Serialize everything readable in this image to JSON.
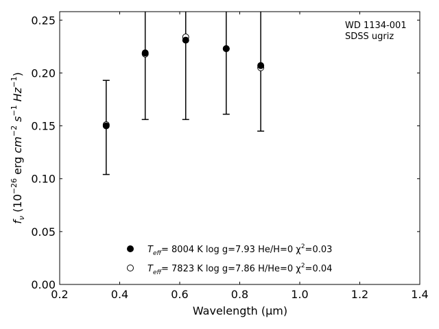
{
  "chart_data": {
    "type": "scatter",
    "title": "",
    "xlabel": "Wavelength (μm)",
    "ylabel_parts": {
      "f": "f",
      "nu": "ν",
      "open": " (10",
      "exp1": "−26",
      "mid": " erg ",
      "cm": "cm",
      "exp2": "−2",
      "s": " s",
      "exp3": "−1",
      "hz": " Hz",
      "exp4": "−1",
      "close": ")"
    },
    "xlim": [
      0.2,
      1.4
    ],
    "ylim": [
      0.0,
      0.258
    ],
    "xticks": [
      "0.2",
      "0.4",
      "0.6",
      "0.8",
      "1.0",
      "1.2",
      "1.4"
    ],
    "yticks": [
      "0.00",
      "0.05",
      "0.10",
      "0.15",
      "0.20",
      "0.25"
    ],
    "grid": false,
    "legend_location": "lower center",
    "annotation": [
      "WD 1134-001",
      "SDSS ugriz"
    ],
    "observed": {
      "x": [
        0.355,
        0.485,
        0.62,
        0.755,
        0.87
      ],
      "y": [
        0.151,
        0.218,
        0.234,
        0.223,
        0.205
      ],
      "err_low": [
        0.104,
        0.156,
        0.156,
        0.161,
        0.145
      ],
      "err_high": [
        0.193,
        0.258,
        0.258,
        0.258,
        0.258
      ]
    },
    "series": [
      {
        "marker": "filled",
        "legend": {
          "teff": "T",
          "teff_sub": "eff",
          "body": "=  8004 K  log g=7.93  He/H=0  χ",
          "sup": "2",
          "tail": "=0.03"
        },
        "x": [
          0.355,
          0.485,
          0.62,
          0.755,
          0.87
        ],
        "y": [
          0.15,
          0.219,
          0.231,
          0.223,
          0.207
        ]
      },
      {
        "marker": "open",
        "legend": {
          "teff": "T",
          "teff_sub": "eff",
          "body": "=  7823 K  log g=7.86  H/He=0  χ",
          "sup": "2",
          "tail": "=0.04"
        },
        "x": [
          0.355,
          0.485,
          0.62,
          0.755,
          0.87
        ],
        "y": [
          0.151,
          0.218,
          0.234,
          0.223,
          0.205
        ]
      }
    ]
  }
}
